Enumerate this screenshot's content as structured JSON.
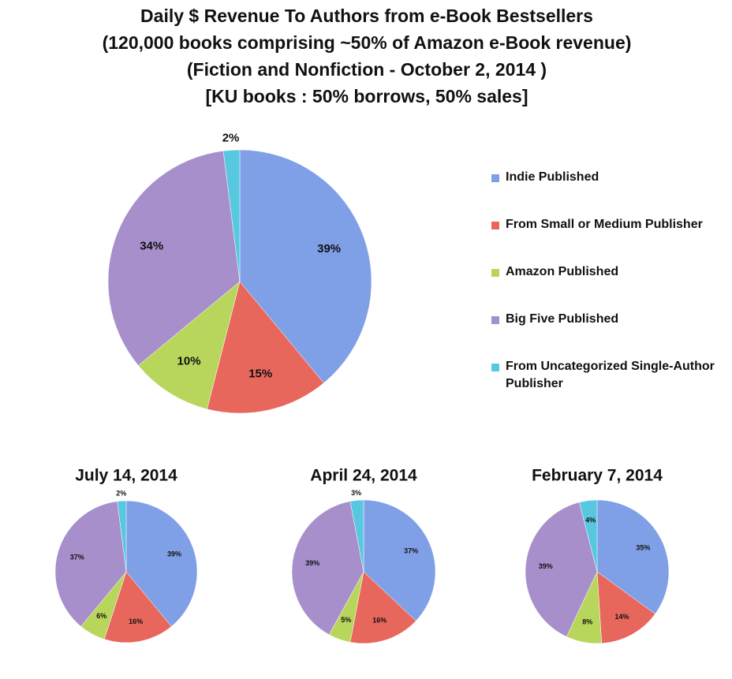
{
  "chart_data": [
    {
      "type": "pie",
      "title": "Daily $ Revenue To Authors from e-Book Bestsellers",
      "subtitle": [
        "(120,000 books comprising ~50% of Amazon e-Book revenue)",
        "(Fiction and Nonfiction - October 2, 2014 )",
        "[KU books : 50% borrows, 50% sales]"
      ],
      "categories": [
        "Indie Published",
        "From Small or Medium Publisher",
        "Amazon Published",
        "Big Five Published",
        "From Uncategorized Single-Author Publisher"
      ],
      "values": [
        39,
        15,
        10,
        34,
        2
      ],
      "value_labels": [
        "39%",
        "15%",
        "10%",
        "34%",
        "2%"
      ],
      "colors": [
        "#7f9fe6",
        "#e8675c",
        "#b9d65c",
        "#a78fcc",
        "#58c8e0"
      ],
      "legend": "right"
    },
    {
      "type": "pie",
      "title": "July 14,  2014",
      "values": [
        39,
        16,
        6,
        37,
        2
      ],
      "value_labels": [
        "39%",
        "16%",
        "6%",
        "37%",
        "2%"
      ],
      "colors": [
        "#7f9fe6",
        "#e8675c",
        "#b9d65c",
        "#a78fcc",
        "#58c8e0"
      ]
    },
    {
      "type": "pie",
      "title": "April 24, 2014",
      "values": [
        37,
        16,
        5,
        39,
        3
      ],
      "value_labels": [
        "37%",
        "16%",
        "5%",
        "39%",
        "3%"
      ],
      "colors": [
        "#7f9fe6",
        "#e8675c",
        "#b9d65c",
        "#a78fcc",
        "#58c8e0"
      ]
    },
    {
      "type": "pie",
      "title": "February 7, 2014",
      "values": [
        35,
        14,
        8,
        39,
        4
      ],
      "value_labels": [
        "35%",
        "14%",
        "8%",
        "39%",
        "4%"
      ],
      "colors": [
        "#7f9fe6",
        "#e8675c",
        "#b9d65c",
        "#a78fcc",
        "#58c8e0"
      ]
    }
  ]
}
